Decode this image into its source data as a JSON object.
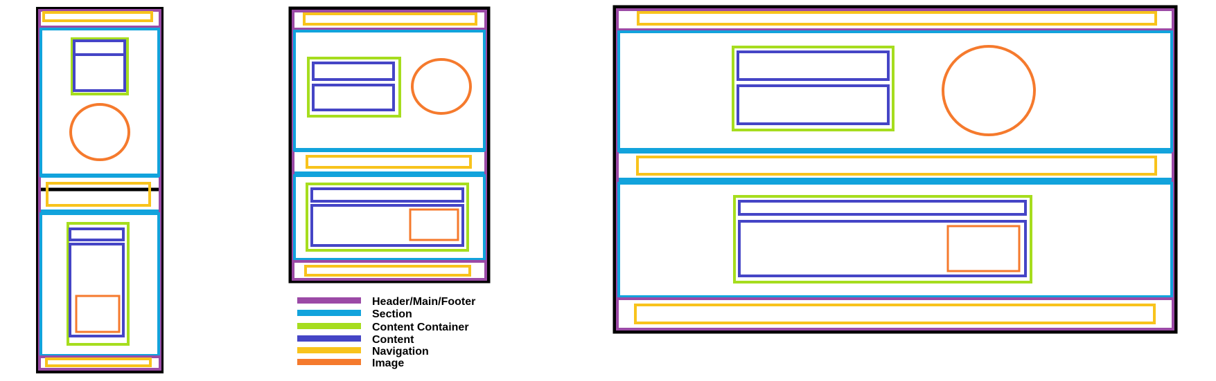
{
  "colors": {
    "frame": "#000000",
    "header_main_footer": "#9b4aa6",
    "section": "#12a3dc",
    "content_container": "#a6dd1e",
    "content": "#4545c6",
    "navigation": "#f8c31c",
    "image": "#f57a2d"
  },
  "legend": [
    {
      "key": "header_main_footer",
      "label": "Header/Main/Footer"
    },
    {
      "key": "section",
      "label": "Section"
    },
    {
      "key": "content_container",
      "label": "Content Container"
    },
    {
      "key": "content",
      "label": "Content"
    },
    {
      "key": "navigation",
      "label": "Navigation"
    },
    {
      "key": "image",
      "label": "Image"
    }
  ],
  "wireframes": [
    {
      "name": "mobile-wireframe"
    },
    {
      "name": "tablet-wireframe"
    },
    {
      "name": "desktop-wireframe"
    }
  ]
}
